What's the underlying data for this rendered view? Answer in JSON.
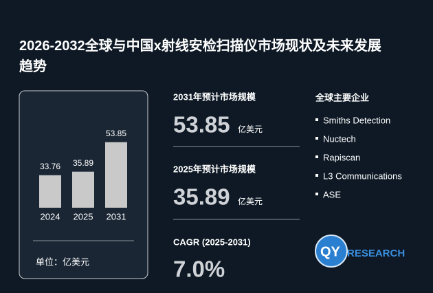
{
  "title": "2026-2032全球与中国x射线安检扫描仪市场现状及未来发展趋势",
  "chart_data": {
    "type": "bar",
    "categories": [
      "2024",
      "2025",
      "2031"
    ],
    "values": [
      33.76,
      35.89,
      53.85
    ],
    "color": "#c9c9c9",
    "ylim": [
      14,
      60
    ],
    "unit": "单位：亿美元"
  },
  "stats": [
    {
      "label": "2031年预计市场规模",
      "value": "53.85",
      "unit": "亿美元"
    },
    {
      "label": "2025年预计市场规模",
      "value": "35.89",
      "unit": "亿美元"
    },
    {
      "label": "CAGR (2025-2031)",
      "value": "7.0%"
    }
  ],
  "companies": {
    "heading": "全球主要企业",
    "items": [
      "Smiths Detection",
      "Nuctech",
      "Rapiscan",
      "L3 Communications",
      "ASE"
    ]
  },
  "logo": [
    "QY",
    "RESEARCH"
  ]
}
